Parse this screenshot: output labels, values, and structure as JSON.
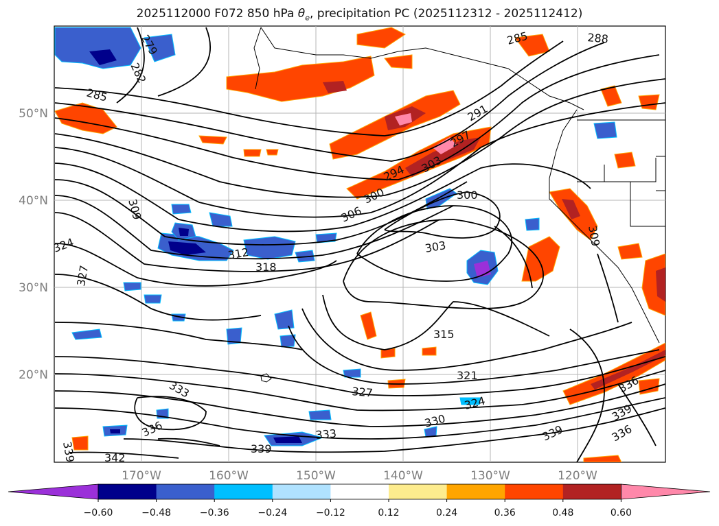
{
  "title_main": "2025112000 F072 850 hPa ",
  "title_theta": "θ",
  "title_sub": "e",
  "title_rest": ", precipitation PC (2025112312 - 2025112412)",
  "lat_labels": [
    "50°N",
    "40°N",
    "30°N",
    "20°N"
  ],
  "lon_labels": [
    "170°W",
    "160°W",
    "150°W",
    "140°W",
    "130°W",
    "120°W"
  ],
  "contour_labels": [
    "279",
    "282",
    "285",
    "285",
    "288",
    "291",
    "294",
    "297",
    "300",
    "300",
    "303",
    "303",
    "306",
    "309",
    "309",
    "312",
    "315",
    "318",
    "321",
    "324",
    "324",
    "327",
    "327",
    "330",
    "333",
    "333",
    "336",
    "336",
    "336",
    "339",
    "339",
    "339",
    "339",
    "342"
  ],
  "colorbar": {
    "colors": [
      "#9b30d9",
      "#00008b",
      "#3a5fcd",
      "#00bfff",
      "#b0e2ff",
      "#ffffff",
      "#fdec8e",
      "#ffa500",
      "#ff4500",
      "#b22222",
      "#ff88aa"
    ],
    "ticks": [
      "−0.60",
      "−0.48",
      "−0.36",
      "−0.24",
      "−0.12",
      "0.12",
      "0.24",
      "0.36",
      "0.48",
      "0.60"
    ]
  }
}
